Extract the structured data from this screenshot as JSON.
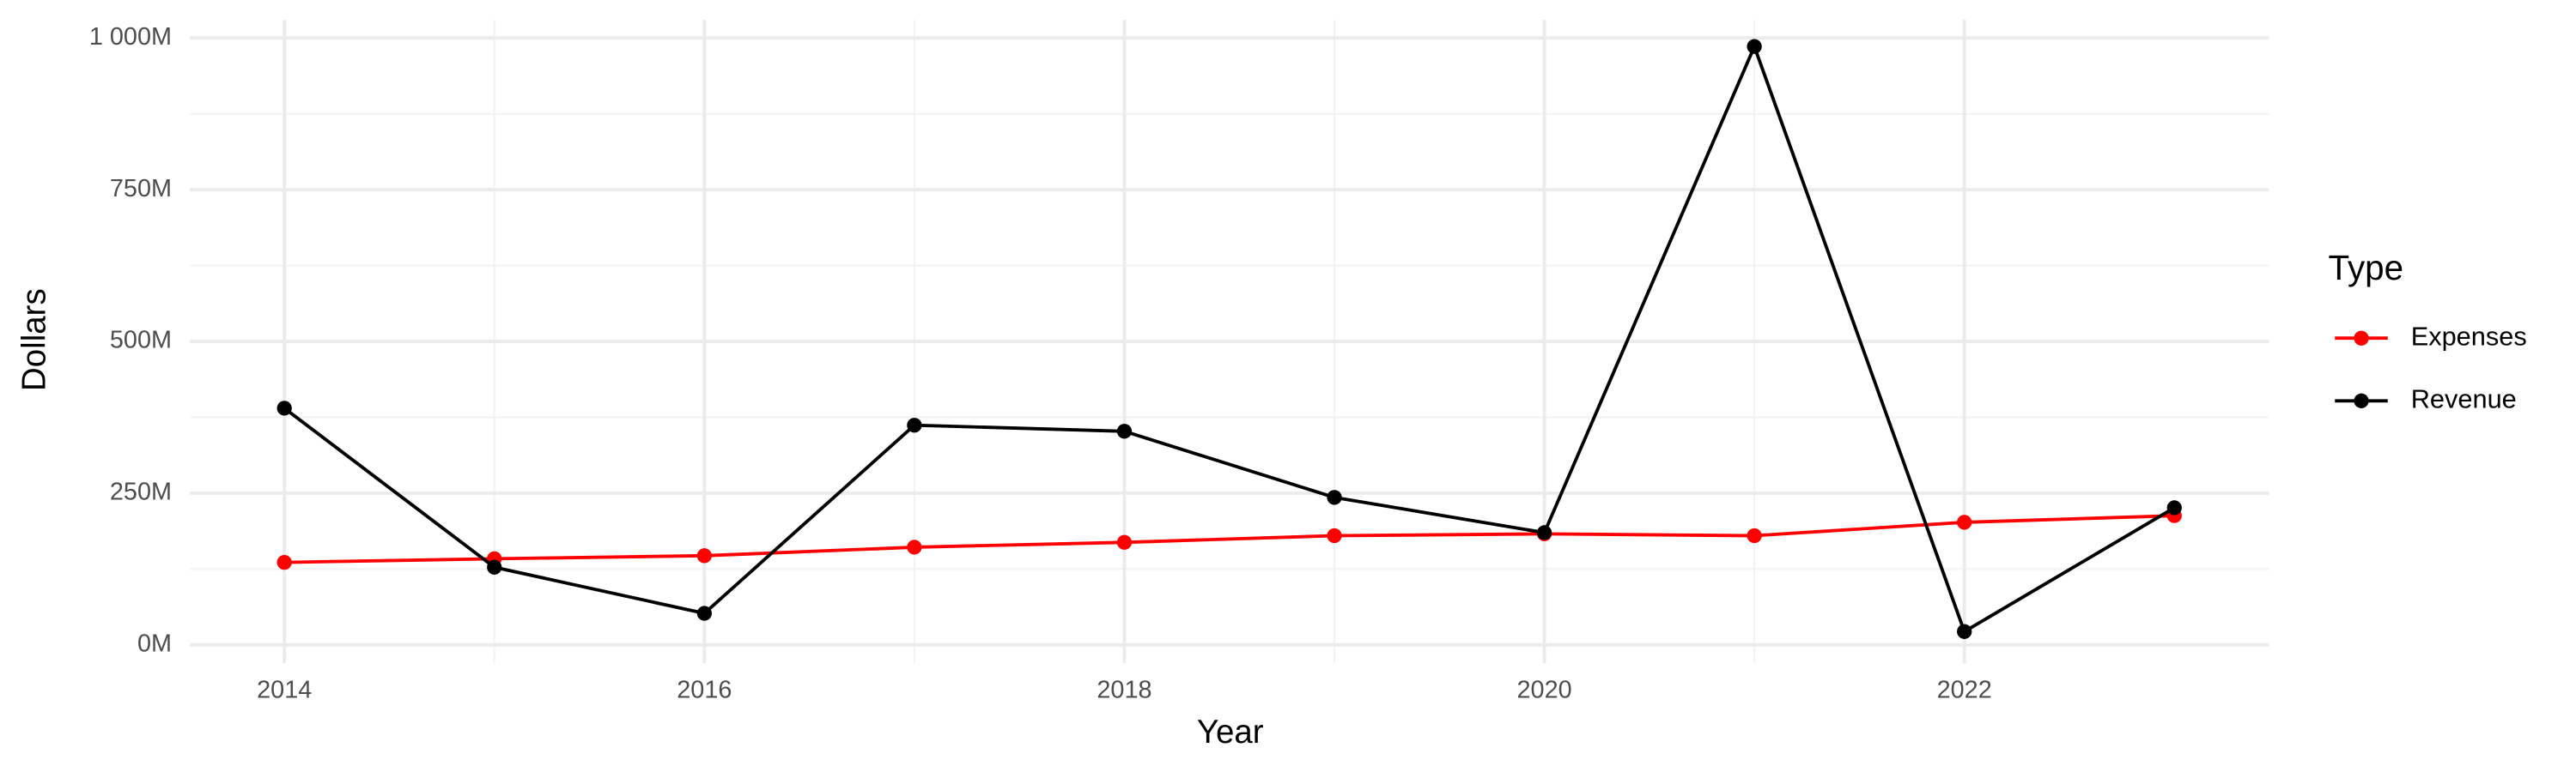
{
  "chart_data": {
    "type": "line",
    "x_label": "Year",
    "y_label": "Dollars",
    "legend_title": "Type",
    "x": [
      2014,
      2015,
      2016,
      2017,
      2018,
      2019,
      2020,
      2021,
      2022,
      2023
    ],
    "series": [
      {
        "name": "Expenses",
        "color": "#ff0000",
        "values": [
          136000000,
          142000000,
          147000000,
          161000000,
          169000000,
          180000000,
          183000000,
          180000000,
          202000000,
          213000000
        ]
      },
      {
        "name": "Revenue",
        "color": "#000000",
        "values": [
          390000000,
          128000000,
          52000000,
          362000000,
          352000000,
          243000000,
          185000000,
          986000000,
          22000000,
          226000000
        ]
      }
    ],
    "xlim": [
      2013.55,
      2023.45
    ],
    "xticks": [
      2014,
      2016,
      2018,
      2020,
      2022
    ],
    "ylim": [
      -30000000,
      1030000000
    ],
    "yticks": [
      {
        "value": 0,
        "label": "0M"
      },
      {
        "value": 250000000,
        "label": "250M"
      },
      {
        "value": 500000000,
        "label": "500M"
      },
      {
        "value": 750000000,
        "label": "750M"
      },
      {
        "value": 1000000000,
        "label": "1 000M"
      }
    ],
    "grid": true,
    "minor_grid": true,
    "legend_position": "right"
  }
}
